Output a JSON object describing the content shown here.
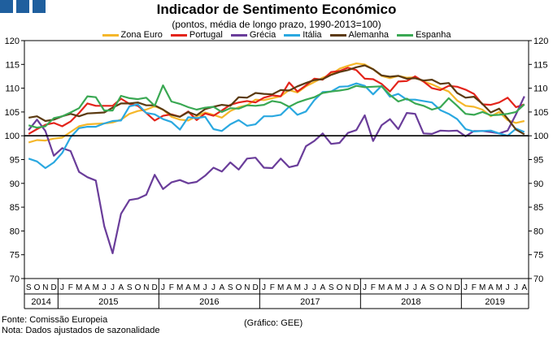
{
  "header": {
    "title": "Indicador de Sentimento Económico",
    "subtitle": "(pontos, média de longo prazo, 1990-2013=100)"
  },
  "footer": {
    "source": "Fonte: Comissão Europeia",
    "note": "Nota: Dados ajustados de sazonalidade",
    "credit": "(Gráfico: GEE)"
  },
  "chart_data": {
    "type": "line",
    "title": "Indicador de Sentimento Económico",
    "ylim": [
      70,
      120
    ],
    "yticks": [
      70,
      75,
      80,
      85,
      90,
      95,
      100,
      105,
      110,
      115,
      120
    ],
    "reference_line": 100,
    "grid": false,
    "legend_position": "top",
    "x": [
      "S",
      "O",
      "N",
      "D",
      "J",
      "F",
      "M",
      "A",
      "M",
      "J",
      "J",
      "A",
      "S",
      "O",
      "N",
      "D",
      "J",
      "F",
      "M",
      "A",
      "M",
      "J",
      "J",
      "A",
      "S",
      "O",
      "N",
      "D",
      "J",
      "F",
      "M",
      "A",
      "M",
      "J",
      "J",
      "A",
      "S",
      "O",
      "N",
      "D",
      "J",
      "F",
      "M",
      "A",
      "M",
      "J",
      "J",
      "A",
      "S",
      "O",
      "N",
      "D",
      "J",
      "F",
      "M",
      "A",
      "M",
      "J",
      "J",
      "A"
    ],
    "years": [
      {
        "label": "2014",
        "start": 0,
        "end": 3
      },
      {
        "label": "2015",
        "start": 4,
        "end": 15
      },
      {
        "label": "2016",
        "start": 16,
        "end": 27
      },
      {
        "label": "2017",
        "start": 28,
        "end": 39
      },
      {
        "label": "2018",
        "start": 40,
        "end": 51
      },
      {
        "label": "2019",
        "start": 52,
        "end": 59
      }
    ],
    "series": [
      {
        "name": "Zona Euro",
        "color": "#f5b72a",
        "values": [
          98.6,
          99.1,
          99.0,
          99.4,
          99.6,
          100.8,
          102.0,
          102.4,
          102.5,
          102.6,
          102.8,
          103.4,
          104.6,
          105.2,
          105.5,
          106.2,
          105.5,
          104.0,
          103.4,
          103.2,
          104.1,
          104.9,
          104.4,
          103.8,
          105.2,
          106.0,
          106.4,
          107.6,
          107.5,
          107.9,
          108.3,
          109.6,
          109.1,
          110.4,
          111.3,
          112.2,
          112.9,
          114.1,
          114.7,
          115.2,
          115.0,
          114.0,
          112.6,
          112.1,
          112.6,
          112.2,
          112.3,
          111.4,
          110.8,
          110.0,
          109.3,
          107.4,
          106.3,
          106.1,
          105.5,
          104.1,
          105.0,
          103.3,
          102.7,
          103.1
        ]
      },
      {
        "name": "Portugal",
        "color": "#e3241b",
        "values": [
          100.4,
          101.4,
          102.3,
          102.7,
          102.0,
          103.0,
          104.8,
          106.8,
          106.3,
          106.3,
          106.3,
          107.8,
          106.7,
          106.3,
          104.8,
          103.2,
          104.2,
          104.5,
          104.0,
          105.1,
          103.3,
          104.7,
          104.2,
          105.3,
          106.5,
          107.0,
          107.3,
          107.0,
          108.0,
          108.5,
          108.3,
          111.2,
          109.3,
          110.6,
          112.0,
          111.8,
          113.4,
          113.6,
          114.3,
          113.8,
          112.0,
          111.9,
          110.9,
          109.3,
          111.4,
          111.5,
          112.5,
          111.4,
          110.0,
          109.6,
          110.5,
          110.3,
          109.7,
          108.8,
          106.6,
          106.5,
          107.0,
          108.0,
          106.0,
          106.6
        ]
      },
      {
        "name": "Grécia",
        "color": "#6a3d9a",
        "values": [
          101.2,
          103.4,
          101.0,
          95.8,
          97.4,
          96.8,
          92.4,
          91.3,
          90.6,
          81.0,
          75.3,
          83.6,
          86.5,
          86.8,
          87.6,
          91.8,
          88.8,
          90.2,
          90.7,
          90.0,
          90.3,
          91.6,
          93.3,
          92.5,
          94.4,
          92.9,
          95.2,
          95.4,
          93.3,
          93.2,
          95.2,
          93.4,
          93.8,
          97.8,
          98.9,
          100.5,
          98.3,
          98.5,
          100.6,
          101.2,
          104.3,
          98.9,
          102.2,
          103.5,
          101.4,
          104.8,
          104.6,
          100.5,
          100.4,
          101.1,
          101.0,
          101.1,
          99.9,
          101.0,
          101.0,
          100.8,
          100.5,
          101.1,
          104.5,
          108.3
        ]
      },
      {
        "name": "Itália",
        "color": "#2aa8e0",
        "values": [
          95.2,
          94.6,
          93.2,
          94.4,
          96.4,
          99.7,
          101.6,
          101.9,
          101.9,
          102.6,
          103.1,
          103.2,
          106.2,
          106.6,
          104.8,
          104.5,
          103.5,
          102.9,
          101.3,
          103.9,
          103.7,
          104.0,
          101.4,
          101.0,
          102.4,
          103.3,
          102.1,
          102.4,
          104.1,
          104.1,
          104.4,
          106.1,
          104.4,
          105.1,
          107.5,
          109.2,
          109.3,
          110.3,
          110.4,
          111.0,
          110.5,
          108.7,
          110.5,
          108.2,
          108.8,
          107.6,
          107.6,
          107.3,
          107.0,
          105.4,
          104.6,
          103.5,
          101.4,
          100.9,
          101.0,
          101.1,
          100.5,
          100.0,
          101.5,
          100.8
        ]
      },
      {
        "name": "Alemanha",
        "color": "#5b3a11",
        "values": [
          103.8,
          104.1,
          103.1,
          103.4,
          104.1,
          104.6,
          104.1,
          104.7,
          104.8,
          104.9,
          105.9,
          106.8,
          106.8,
          107.0,
          106.4,
          106.4,
          105.5,
          104.4,
          104.0,
          105.0,
          104.3,
          105.6,
          106.1,
          106.5,
          106.3,
          108.1,
          108.0,
          109.0,
          108.8,
          108.7,
          109.6,
          109.5,
          110.4,
          111.1,
          111.7,
          111.9,
          112.8,
          113.4,
          113.8,
          114.4,
          114.8,
          114.0,
          112.7,
          112.4,
          112.6,
          112.0,
          112.1,
          111.6,
          111.8,
          110.9,
          111.1,
          109.0,
          108.0,
          108.2,
          106.7,
          104.9,
          105.7,
          103.6,
          101.3,
          100.3
        ]
      },
      {
        "name": "Espanha",
        "color": "#3aa853",
        "values": [
          102.2,
          101.7,
          102.0,
          103.7,
          104.1,
          104.9,
          105.8,
          108.3,
          108.1,
          105.3,
          105.3,
          108.4,
          107.9,
          107.7,
          108.0,
          106.3,
          110.6,
          107.2,
          106.7,
          106.0,
          105.5,
          105.9,
          106.1,
          105.0,
          105.8,
          105.7,
          106.4,
          106.3,
          106.5,
          107.3,
          107.0,
          106.1,
          107.0,
          107.6,
          108.1,
          109.0,
          109.3,
          109.5,
          109.8,
          110.5,
          110.2,
          110.3,
          110.4,
          108.6,
          107.2,
          107.8,
          106.8,
          106.3,
          105.5,
          106.0,
          107.9,
          106.3,
          104.6,
          104.4,
          105.0,
          104.3,
          104.4,
          104.6,
          105.0,
          106.6
        ]
      }
    ]
  }
}
